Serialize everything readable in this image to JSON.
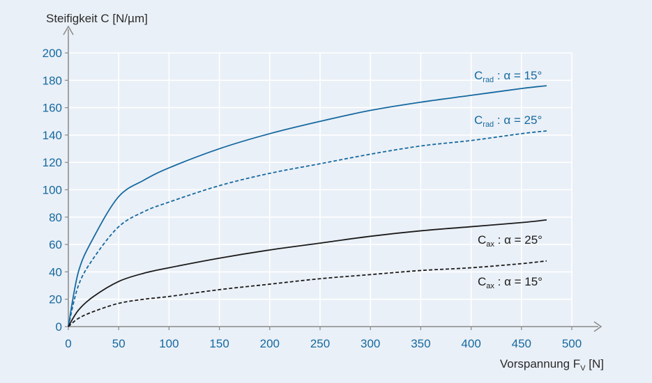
{
  "chart_data": {
    "type": "line",
    "title": "",
    "ylabel": "Steifigkeit C [N/µm]",
    "xlabel": "Vorspannung F",
    "xlabel_subscript": "V",
    "xlabel_unit": "[N]",
    "xlim": [
      0,
      500
    ],
    "ylim": [
      0,
      200
    ],
    "x_ticks": [
      0,
      50,
      100,
      150,
      200,
      250,
      300,
      350,
      400,
      450,
      500
    ],
    "y_ticks": [
      0,
      20,
      40,
      60,
      80,
      100,
      120,
      140,
      160,
      180,
      200
    ],
    "grid": true,
    "x": [
      0,
      10,
      25,
      50,
      75,
      100,
      150,
      200,
      250,
      300,
      350,
      400,
      450,
      475
    ],
    "series": [
      {
        "id": "crad-15",
        "name": "C_rad : α = 15°",
        "label_main": "C",
        "label_sub": "rad",
        "label_rest": " : α = 15°",
        "color": "#1569a0",
        "dash": "solid",
        "values": [
          0,
          40,
          65,
          95,
          107,
          116,
          130,
          141,
          150,
          158,
          164,
          169,
          174,
          176
        ]
      },
      {
        "id": "crad-25",
        "name": "C_rad : α = 25°",
        "label_main": "C",
        "label_sub": "rad",
        "label_rest": " : α = 25°",
        "color": "#1569a0",
        "dash": "dashed",
        "values": [
          0,
          30,
          50,
          73,
          84,
          91,
          103,
          112,
          119,
          126,
          132,
          136,
          141,
          143
        ]
      },
      {
        "id": "cax-25",
        "name": "C_ax : α = 25°",
        "label_main": "C",
        "label_sub": "ax",
        "label_rest": " : α = 25°",
        "color": "#1a1a1a",
        "dash": "solid",
        "values": [
          0,
          12,
          22,
          33,
          39,
          43,
          50,
          56,
          61,
          66,
          70,
          73,
          76,
          78
        ]
      },
      {
        "id": "cax-15",
        "name": "C_ax : α = 15°",
        "label_main": "C",
        "label_sub": "ax",
        "label_rest": " : α = 15°",
        "color": "#1a1a1a",
        "dash": "dashed",
        "values": [
          0,
          6,
          11,
          17,
          20,
          22,
          27,
          31,
          35,
          38,
          41,
          43,
          46,
          48
        ]
      }
    ]
  }
}
